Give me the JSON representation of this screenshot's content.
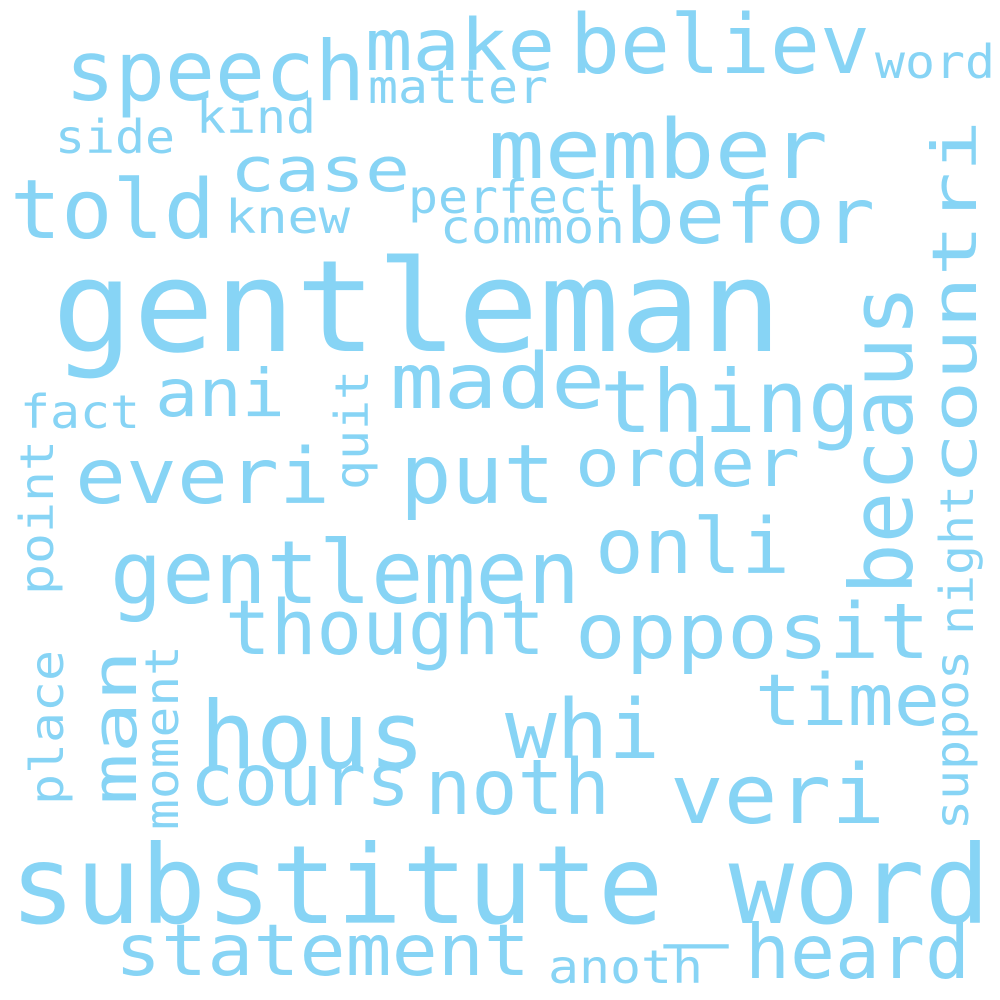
{
  "word_color": "#87d4f5",
  "words": [
    {
      "text": "gentleman"
    },
    {
      "text": "substitute_word"
    },
    {
      "text": "member"
    },
    {
      "text": "hous"
    },
    {
      "text": "speech"
    },
    {
      "text": "believ"
    },
    {
      "text": "told"
    },
    {
      "text": "befor"
    },
    {
      "text": "countri"
    },
    {
      "text": "becaus"
    },
    {
      "text": "opposit"
    },
    {
      "text": "gentlemen"
    },
    {
      "text": "thing"
    },
    {
      "text": "made"
    },
    {
      "text": "put"
    },
    {
      "text": "everi"
    },
    {
      "text": "thought"
    },
    {
      "text": "veri"
    },
    {
      "text": "man"
    },
    {
      "text": "statement"
    },
    {
      "text": "heard"
    },
    {
      "text": "noth"
    },
    {
      "text": "whi"
    },
    {
      "text": "cours"
    },
    {
      "text": "onli"
    },
    {
      "text": "make"
    },
    {
      "text": "time"
    },
    {
      "text": "order"
    },
    {
      "text": "ani"
    },
    {
      "text": "case"
    },
    {
      "text": "common"
    },
    {
      "text": "perfect"
    },
    {
      "text": "word"
    },
    {
      "text": "matter"
    },
    {
      "text": "kind"
    },
    {
      "text": "side"
    },
    {
      "text": "knew"
    },
    {
      "text": "fact"
    },
    {
      "text": "quit"
    },
    {
      "text": "point"
    },
    {
      "text": "place"
    },
    {
      "text": "moment"
    },
    {
      "text": "night"
    },
    {
      "text": "suppos"
    },
    {
      "text": "anoth"
    }
  ]
}
